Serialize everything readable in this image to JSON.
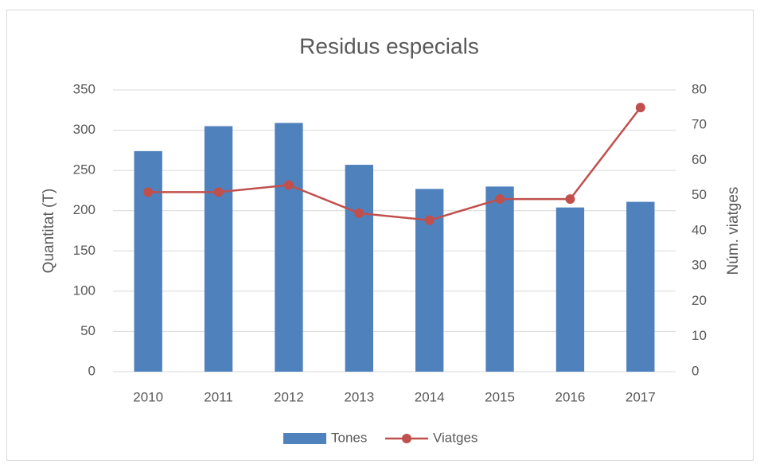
{
  "chart_data": {
    "type": "bar_line",
    "title": "Residus especials",
    "categories": [
      "2010",
      "2011",
      "2012",
      "2013",
      "2014",
      "2015",
      "2016",
      "2017"
    ],
    "series": [
      {
        "name": "Tones",
        "color": "#4f81bd",
        "type": "bar",
        "values": [
          274,
          305,
          309,
          257,
          227,
          230,
          204,
          211
        ]
      },
      {
        "name": "Viatges",
        "color": "#c0504d",
        "type": "line",
        "axis": "y2",
        "values": [
          51,
          51,
          53,
          45,
          43,
          49,
          49,
          75
        ]
      }
    ],
    "ylabel": "Quantitat (T)",
    "y2label": "Núm. viatges",
    "ylim": [
      0,
      350
    ],
    "yticks": [
      0,
      50,
      100,
      150,
      200,
      250,
      300,
      350
    ],
    "y2lim": [
      0,
      80
    ],
    "y2ticks": [
      0,
      10,
      20,
      30,
      40,
      50,
      60,
      70,
      80
    ],
    "grid": true,
    "legend": "bottom"
  }
}
